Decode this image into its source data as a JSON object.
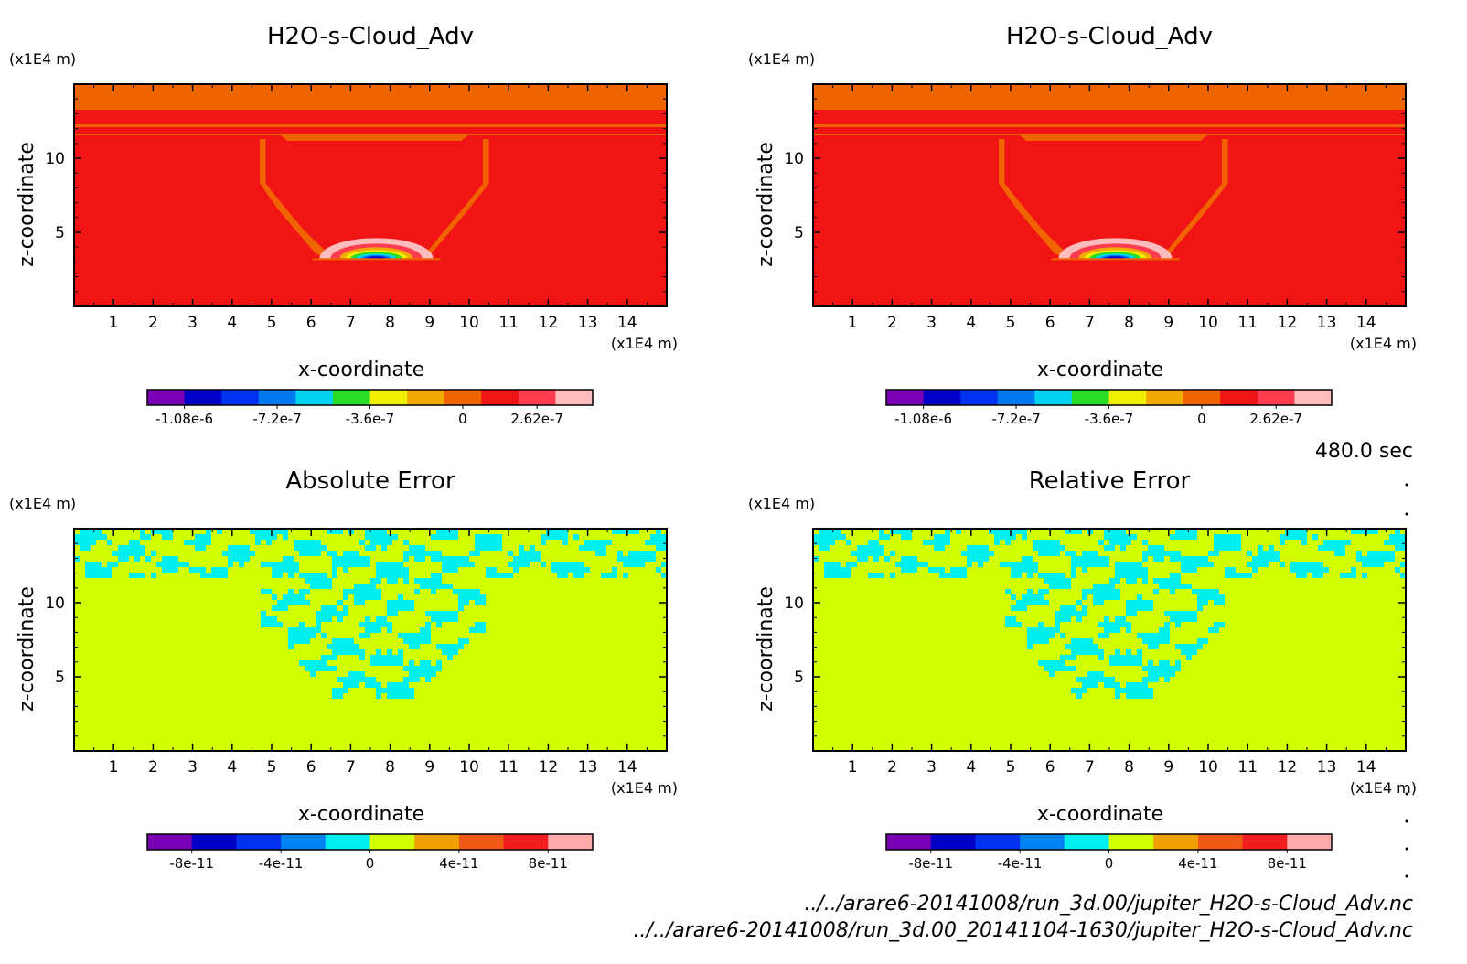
{
  "time_label": "480.0 sec",
  "files": [
    "../../arare6-20141008/run_3d.00/jupiter_H2O-s-Cloud_Adv.nc",
    "../../arare6-20141008/run_3d.00_20141104-1630/jupiter_H2O-s-Cloud_Adv.nc"
  ],
  "chart_data": [
    {
      "type": "heatmap",
      "title": "H2O-s-Cloud_Adv",
      "xlabel": "x-coordinate",
      "ylabel": "z-coordinate",
      "xunit": "(x1E4 m)",
      "yunit": "(x1E4 m)",
      "xlim": [
        0,
        15
      ],
      "ylim": [
        0,
        15
      ],
      "xticks": [
        "1",
        "2",
        "3",
        "4",
        "5",
        "6",
        "7",
        "8",
        "9",
        "10",
        "11",
        "12",
        "13",
        "14"
      ],
      "yticks": [
        "5",
        "10"
      ],
      "pattern": "cloud",
      "colorbar": {
        "colors": [
          "#7a00b4",
          "#0000c8",
          "#0032f0",
          "#0078f0",
          "#00d2f0",
          "#28dc28",
          "#f0f000",
          "#f0aa00",
          "#f06400",
          "#f01414",
          "#ff3c50",
          "#ffbcbc"
        ],
        "ticks": [
          "-1.08e-6",
          "-7.2e-7",
          "-3.6e-7",
          "0",
          "2.62e-7"
        ]
      }
    },
    {
      "type": "heatmap",
      "title": "H2O-s-Cloud_Adv",
      "xlabel": "x-coordinate",
      "ylabel": "z-coordinate",
      "xunit": "(x1E4 m)",
      "yunit": "(x1E4 m)",
      "xlim": [
        0,
        15
      ],
      "ylim": [
        0,
        15
      ],
      "xticks": [
        "1",
        "2",
        "3",
        "4",
        "5",
        "6",
        "7",
        "8",
        "9",
        "10",
        "11",
        "12",
        "13",
        "14"
      ],
      "yticks": [
        "5",
        "10"
      ],
      "pattern": "cloud",
      "colorbar": {
        "colors": [
          "#7a00b4",
          "#0000c8",
          "#0032f0",
          "#0078f0",
          "#00d2f0",
          "#28dc28",
          "#f0f000",
          "#f0aa00",
          "#f06400",
          "#f01414",
          "#ff3c50",
          "#ffbcbc"
        ],
        "ticks": [
          "-1.08e-6",
          "-7.2e-7",
          "-3.6e-7",
          "0",
          "2.62e-7"
        ]
      }
    },
    {
      "type": "heatmap",
      "title": "Absolute Error",
      "xlabel": "x-coordinate",
      "ylabel": "z-coordinate",
      "xunit": "(x1E4 m)",
      "yunit": "(x1E4 m)",
      "xlim": [
        0,
        15
      ],
      "ylim": [
        0,
        15
      ],
      "xticks": [
        "1",
        "2",
        "3",
        "4",
        "5",
        "6",
        "7",
        "8",
        "9",
        "10",
        "11",
        "12",
        "13",
        "14"
      ],
      "yticks": [
        "5",
        "10"
      ],
      "pattern": "abs",
      "colorbar": {
        "colors": [
          "#7a00b4",
          "#0000c8",
          "#0032f0",
          "#0082f0",
          "#00f0f0",
          "#d2ff00",
          "#f0a000",
          "#f05a14",
          "#f01e1e",
          "#ffaaaa"
        ],
        "ticks": [
          "-8e-11",
          "-4e-11",
          "0",
          "4e-11",
          "8e-11"
        ]
      }
    },
    {
      "type": "heatmap",
      "title": "Relative Error",
      "xlabel": "x-coordinate",
      "ylabel": "z-coordinate",
      "xunit": "(x1E4 m)",
      "yunit": "(x1E4 m)",
      "xlim": [
        0,
        15
      ],
      "ylim": [
        0,
        15
      ],
      "xticks": [
        "1",
        "2",
        "3",
        "4",
        "5",
        "6",
        "7",
        "8",
        "9",
        "10",
        "11",
        "12",
        "13",
        "14"
      ],
      "yticks": [
        "5",
        "10"
      ],
      "pattern": "rel",
      "colorbar": {
        "colors": [
          "#7a00b4",
          "#0000c8",
          "#0032f0",
          "#0082f0",
          "#00f0f0",
          "#d2ff00",
          "#f0a000",
          "#f05a14",
          "#f01e1e",
          "#ffaaaa"
        ],
        "ticks": [
          "-8e-11",
          "-4e-11",
          "0",
          "4e-11",
          "8e-11"
        ]
      }
    }
  ]
}
